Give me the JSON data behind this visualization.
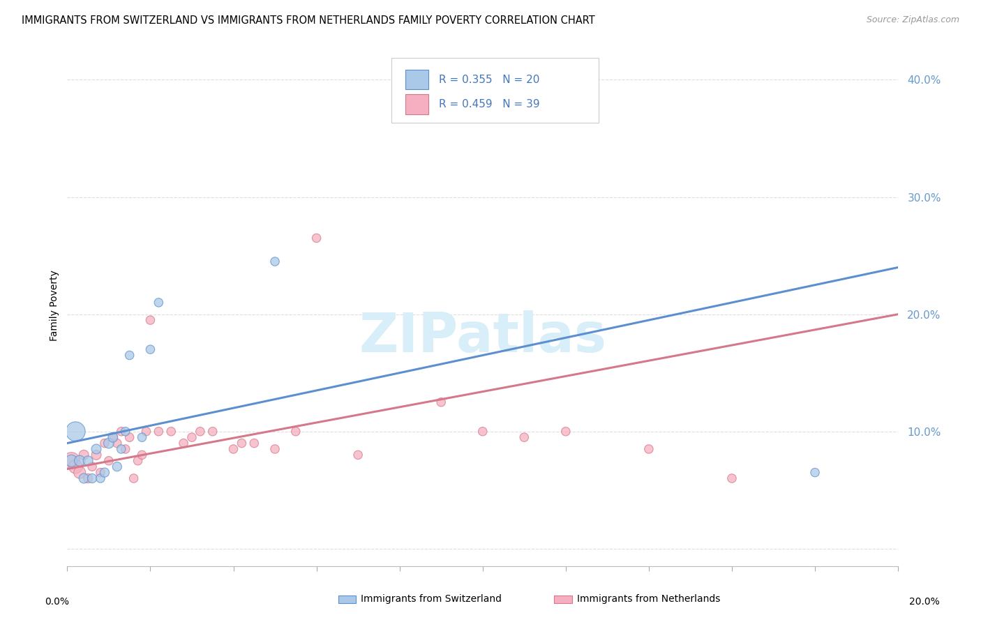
{
  "title": "IMMIGRANTS FROM SWITZERLAND VS IMMIGRANTS FROM NETHERLANDS FAMILY POVERTY CORRELATION CHART",
  "source": "Source: ZipAtlas.com",
  "ylabel": "Family Poverty",
  "yticks": [
    0.0,
    0.1,
    0.2,
    0.3,
    0.4
  ],
  "ytick_labels": [
    "",
    "10.0%",
    "20.0%",
    "30.0%",
    "40.0%"
  ],
  "xlim": [
    0.0,
    0.2
  ],
  "ylim": [
    -0.015,
    0.43
  ],
  "color_swiss": "#aac9e8",
  "color_netherlands": "#f5afc0",
  "color_line_swiss": "#5b8fcf",
  "color_line_netherlands": "#d4788a",
  "color_yticks": "#6699cc",
  "watermark_text": "ZIPatlas",
  "watermark_color": "#d8eef8",
  "swiss_x": [
    0.001,
    0.002,
    0.003,
    0.004,
    0.005,
    0.006,
    0.007,
    0.008,
    0.009,
    0.01,
    0.011,
    0.012,
    0.013,
    0.014,
    0.015,
    0.018,
    0.02,
    0.022,
    0.05,
    0.18
  ],
  "swiss_y": [
    0.075,
    0.1,
    0.075,
    0.06,
    0.075,
    0.06,
    0.085,
    0.06,
    0.065,
    0.09,
    0.095,
    0.07,
    0.085,
    0.1,
    0.165,
    0.095,
    0.17,
    0.21,
    0.245,
    0.065
  ],
  "swiss_size": [
    150,
    400,
    120,
    100,
    100,
    90,
    100,
    80,
    90,
    110,
    100,
    90,
    80,
    80,
    80,
    80,
    80,
    80,
    80,
    80
  ],
  "netherlands_x": [
    0.001,
    0.002,
    0.003,
    0.004,
    0.005,
    0.006,
    0.007,
    0.008,
    0.009,
    0.01,
    0.011,
    0.012,
    0.013,
    0.014,
    0.015,
    0.016,
    0.017,
    0.018,
    0.019,
    0.02,
    0.022,
    0.025,
    0.028,
    0.03,
    0.032,
    0.035,
    0.04,
    0.042,
    0.045,
    0.05,
    0.055,
    0.06,
    0.07,
    0.09,
    0.1,
    0.11,
    0.12,
    0.14,
    0.16
  ],
  "netherlands_y": [
    0.075,
    0.07,
    0.065,
    0.08,
    0.06,
    0.07,
    0.08,
    0.065,
    0.09,
    0.075,
    0.095,
    0.09,
    0.1,
    0.085,
    0.095,
    0.06,
    0.075,
    0.08,
    0.1,
    0.195,
    0.1,
    0.1,
    0.09,
    0.095,
    0.1,
    0.1,
    0.085,
    0.09,
    0.09,
    0.085,
    0.1,
    0.265,
    0.08,
    0.125,
    0.1,
    0.095,
    0.1,
    0.085,
    0.06
  ],
  "netherlands_size": [
    300,
    200,
    150,
    100,
    90,
    80,
    100,
    80,
    80,
    80,
    80,
    80,
    80,
    80,
    80,
    80,
    80,
    80,
    80,
    80,
    80,
    80,
    80,
    80,
    80,
    80,
    80,
    80,
    80,
    80,
    80,
    80,
    80,
    80,
    80,
    80,
    80,
    80,
    80
  ],
  "swiss_line_x": [
    0.0,
    0.2
  ],
  "swiss_line_y": [
    0.09,
    0.24
  ],
  "netherlands_line_x": [
    0.0,
    0.2
  ],
  "netherlands_line_y": [
    0.068,
    0.2
  ],
  "legend_swiss_text": "R = 0.355   N = 20",
  "legend_neth_text": "R = 0.459   N = 39",
  "legend_text_color": "#4477bb",
  "bottom_label_swiss": "Immigrants from Switzerland",
  "bottom_label_neth": "Immigrants from Netherlands"
}
